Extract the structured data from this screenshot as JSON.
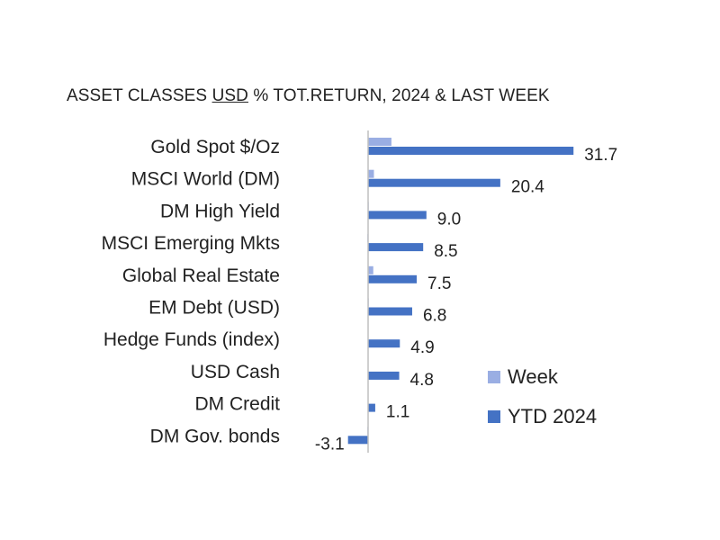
{
  "chart_data": {
    "type": "bar",
    "orientation": "horizontal",
    "title_parts": [
      "ASSET CLASSES ",
      "USD",
      " % TOT.RETURN, 2024 & LAST WEEK"
    ],
    "categories": [
      "Gold Spot   $/Oz",
      "MSCI World (DM)",
      "DM High Yield",
      "MSCI Emerging Mkts",
      "Global Real Estate",
      "EM Debt (USD)",
      "Hedge Funds (index)",
      "USD Cash",
      "DM Credit",
      "DM Gov. bonds"
    ],
    "series": [
      {
        "name": "Week",
        "color": "#9AAEE3",
        "values": [
          3.6,
          0.9,
          0.1,
          -0.1,
          0.8,
          0.1,
          0.0,
          0.0,
          0.0,
          -0.1
        ]
      },
      {
        "name": "YTD 2024",
        "color": "#4472C4",
        "values": [
          31.7,
          20.4,
          9.0,
          8.5,
          7.5,
          6.8,
          4.9,
          4.8,
          1.1,
          -3.1
        ]
      }
    ],
    "data_labels": [
      "31.7",
      "20.4",
      "9.0",
      "8.5",
      "7.5",
      "6.8",
      "4.9",
      "4.8",
      "1.1",
      "-3.1"
    ],
    "legend_position": "right",
    "grid": false
  }
}
